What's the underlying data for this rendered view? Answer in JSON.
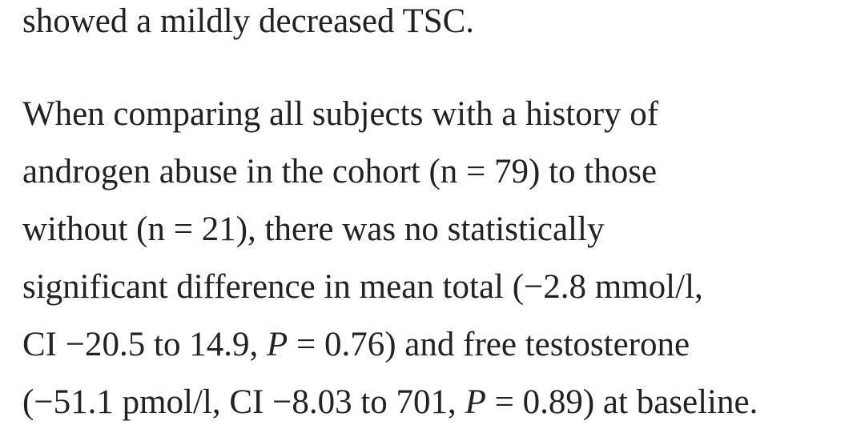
{
  "paragraphs": [
    {
      "lines": [
        [
          {
            "text": "showed a mildly decreased TSC."
          }
        ]
      ]
    },
    {
      "lines": [
        [
          {
            "text": "When comparing all subjects with a history of"
          }
        ],
        [
          {
            "text": "androgen abuse in the cohort (n = 79) to those"
          }
        ],
        [
          {
            "text": "without (n = 21), there was no statistically"
          }
        ],
        [
          {
            "text": "significant difference in mean total (−2.8 mmol/l,"
          }
        ],
        [
          {
            "text": "CI −20.5 to 14.9, "
          },
          {
            "text": "P",
            "italic": true
          },
          {
            "text": " = 0.76) and free testosterone"
          }
        ],
        [
          {
            "text": "(−51.1 pmol/l, CI −8.03 to 701, "
          },
          {
            "text": "P",
            "italic": true
          },
          {
            "text": " = 0.89) at baseline."
          }
        ]
      ]
    }
  ]
}
